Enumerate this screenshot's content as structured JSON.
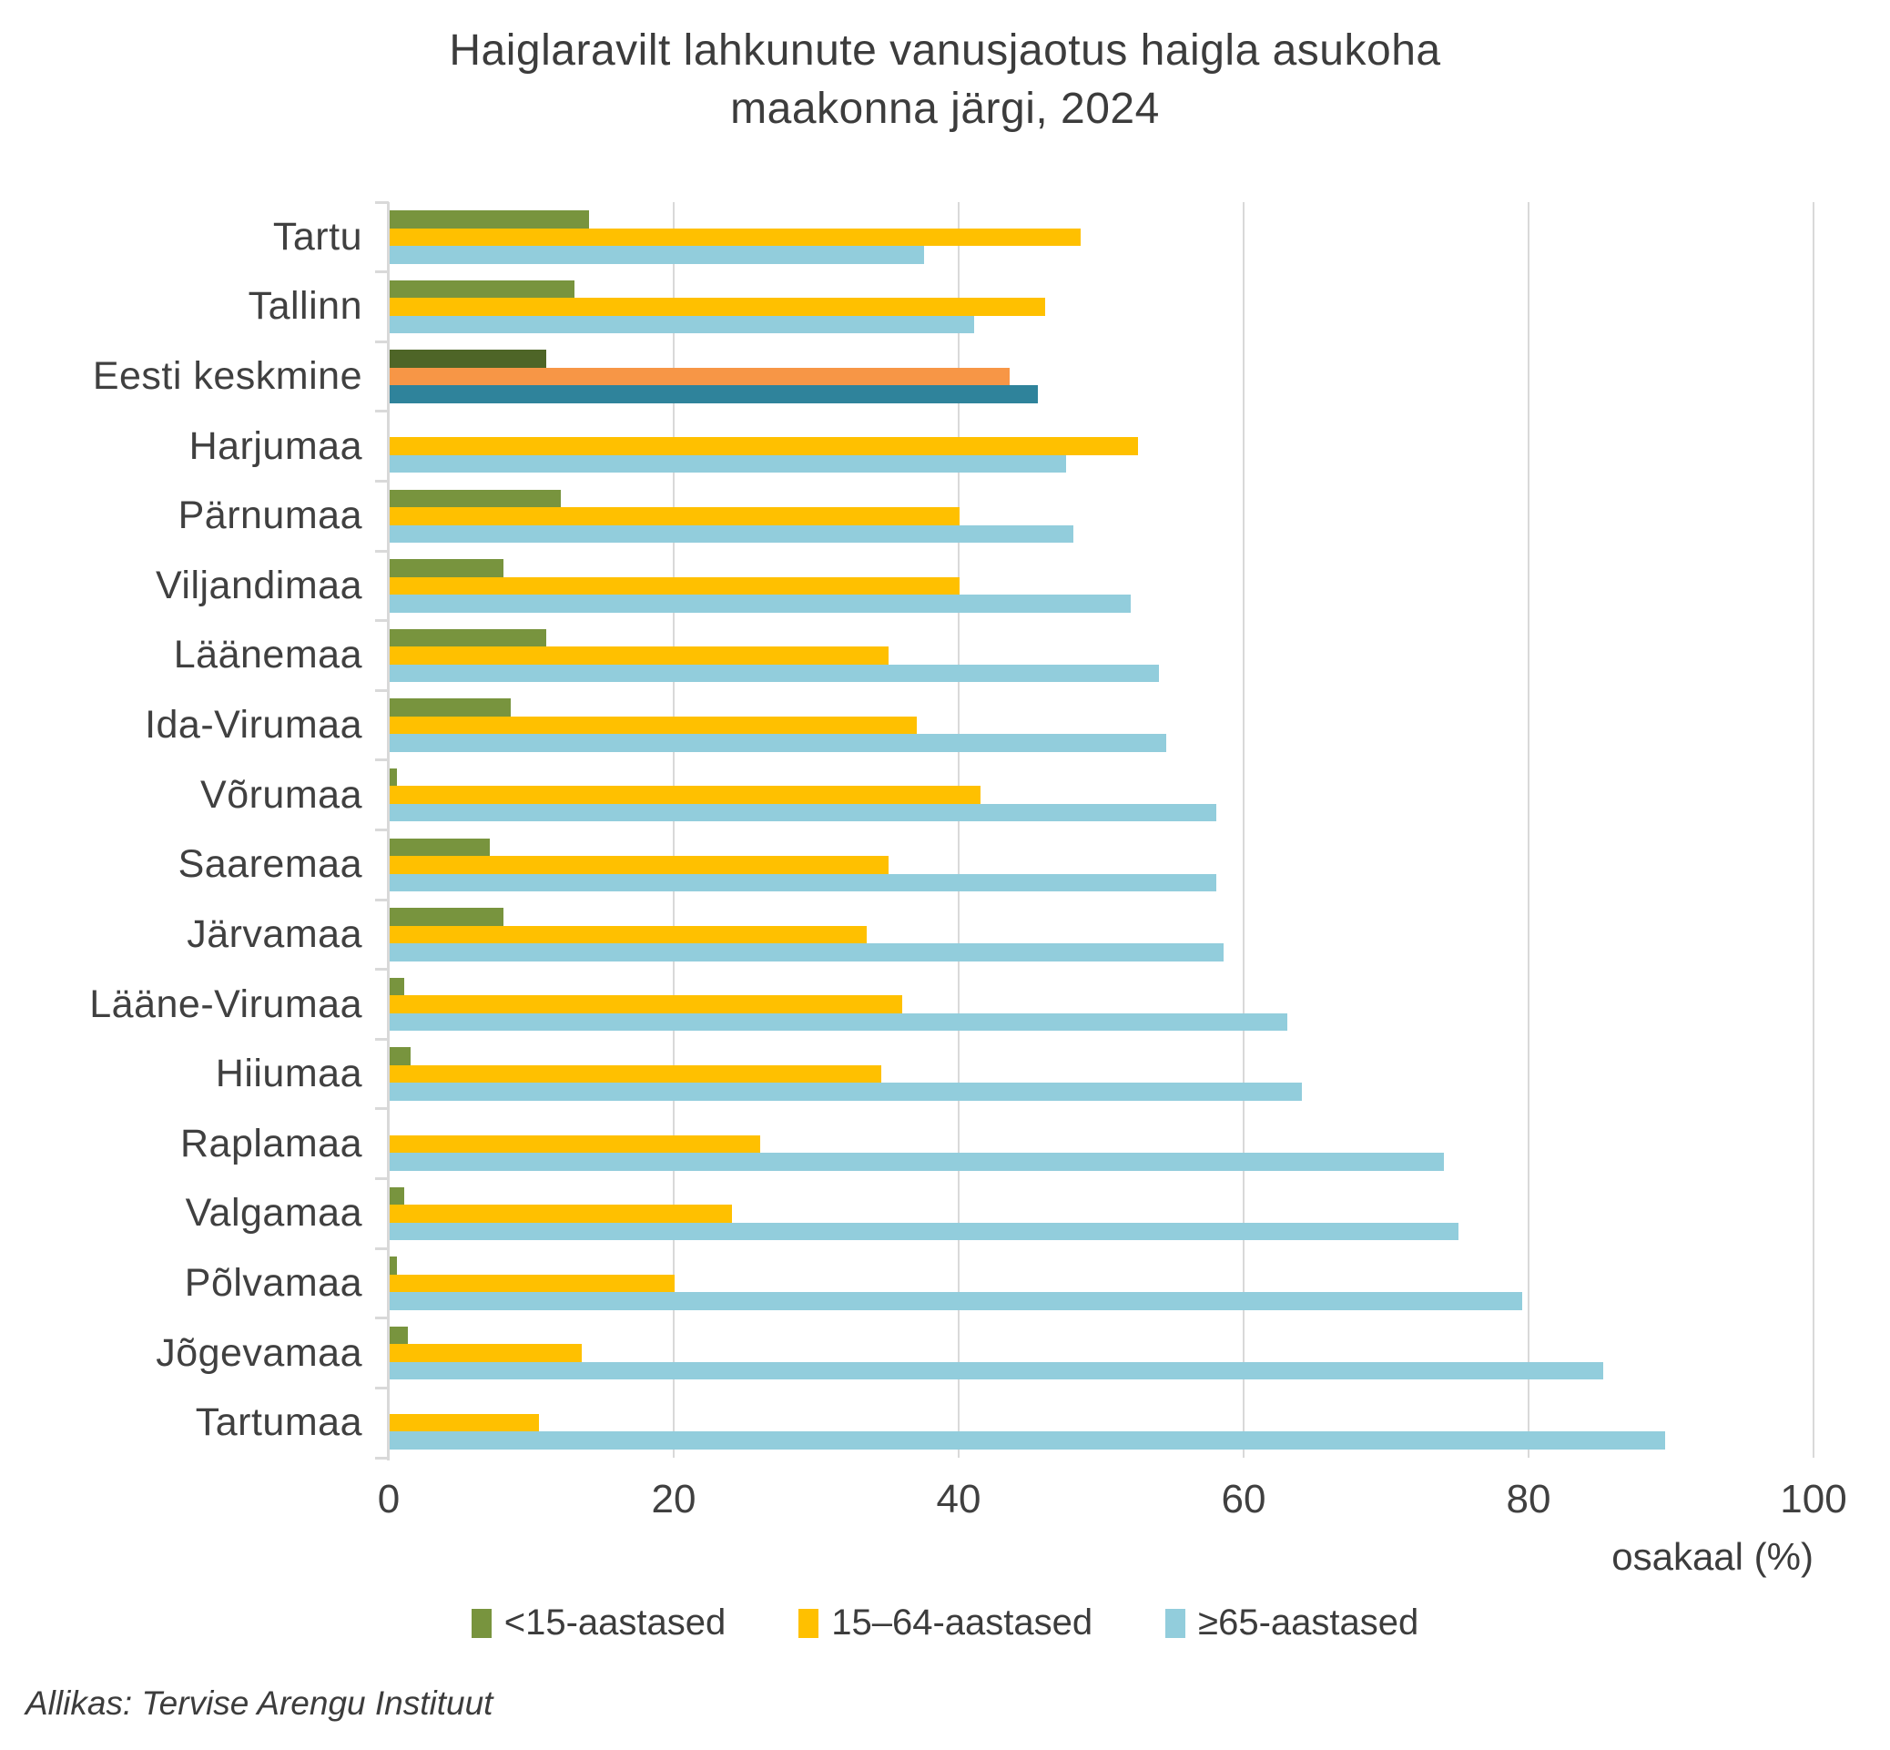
{
  "title_lines": [
    "Haiglaravilt lahkunute vanusjaotus haigla asukoha",
    "maakonna järgi, 2024"
  ],
  "source": "Allikas: Tervise Arengu Instituut",
  "colors": {
    "grid": "#D9D9D9",
    "axis": "#D9D9D9",
    "title_text": "#3C3C3C",
    "tick_text": "#404040"
  },
  "chart_data": {
    "type": "bar",
    "orientation": "horizontal",
    "title": "Haiglaravilt lahkunute vanusjaotus haigla asukoha maakonna järgi, 2024",
    "xlabel": "osakaal (%)",
    "xlim": [
      0,
      100
    ],
    "xticks": [
      0,
      20,
      40,
      60,
      80,
      100
    ],
    "grid": true,
    "legend_position": "bottom",
    "categories": [
      "Tartu",
      "Tallinn",
      "Eesti keskmine",
      "Harjumaa",
      "Pärnumaa",
      "Viljandimaa",
      "Läänemaa",
      "Ida-Virumaa",
      "Võrumaa",
      "Saaremaa",
      "Järvamaa",
      "Lääne-Virumaa",
      "Hiiumaa",
      "Raplamaa",
      "Valgamaa",
      "Põlvamaa",
      "Jõgevamaa",
      "Tartumaa"
    ],
    "series": [
      {
        "name": "<15-aastased",
        "color": "#78943E",
        "values": [
          14,
          13,
          11,
          0,
          12,
          8,
          11,
          8.5,
          0.5,
          7,
          8,
          1,
          1.5,
          0,
          1,
          0.5,
          1.3,
          0
        ]
      },
      {
        "name": "15–64-aastased",
        "color": "#FFC000",
        "values": [
          48.5,
          46,
          43.5,
          52.5,
          40,
          40,
          35,
          37,
          41.5,
          35,
          33.5,
          36,
          34.5,
          26,
          24,
          20,
          13.5,
          10.5
        ]
      },
      {
        "name": "≥65-aastased",
        "color": "#92CDDC",
        "values": [
          37.5,
          41,
          45.5,
          47.5,
          48,
          52,
          54,
          54.5,
          58,
          58,
          58.5,
          63,
          64,
          74,
          75,
          79.5,
          85.2,
          89.5
        ]
      }
    ],
    "highlight_category": "Eesti keskmine",
    "highlight_colors": [
      "#4E6527",
      "#F79646",
      "#2F839B"
    ]
  }
}
